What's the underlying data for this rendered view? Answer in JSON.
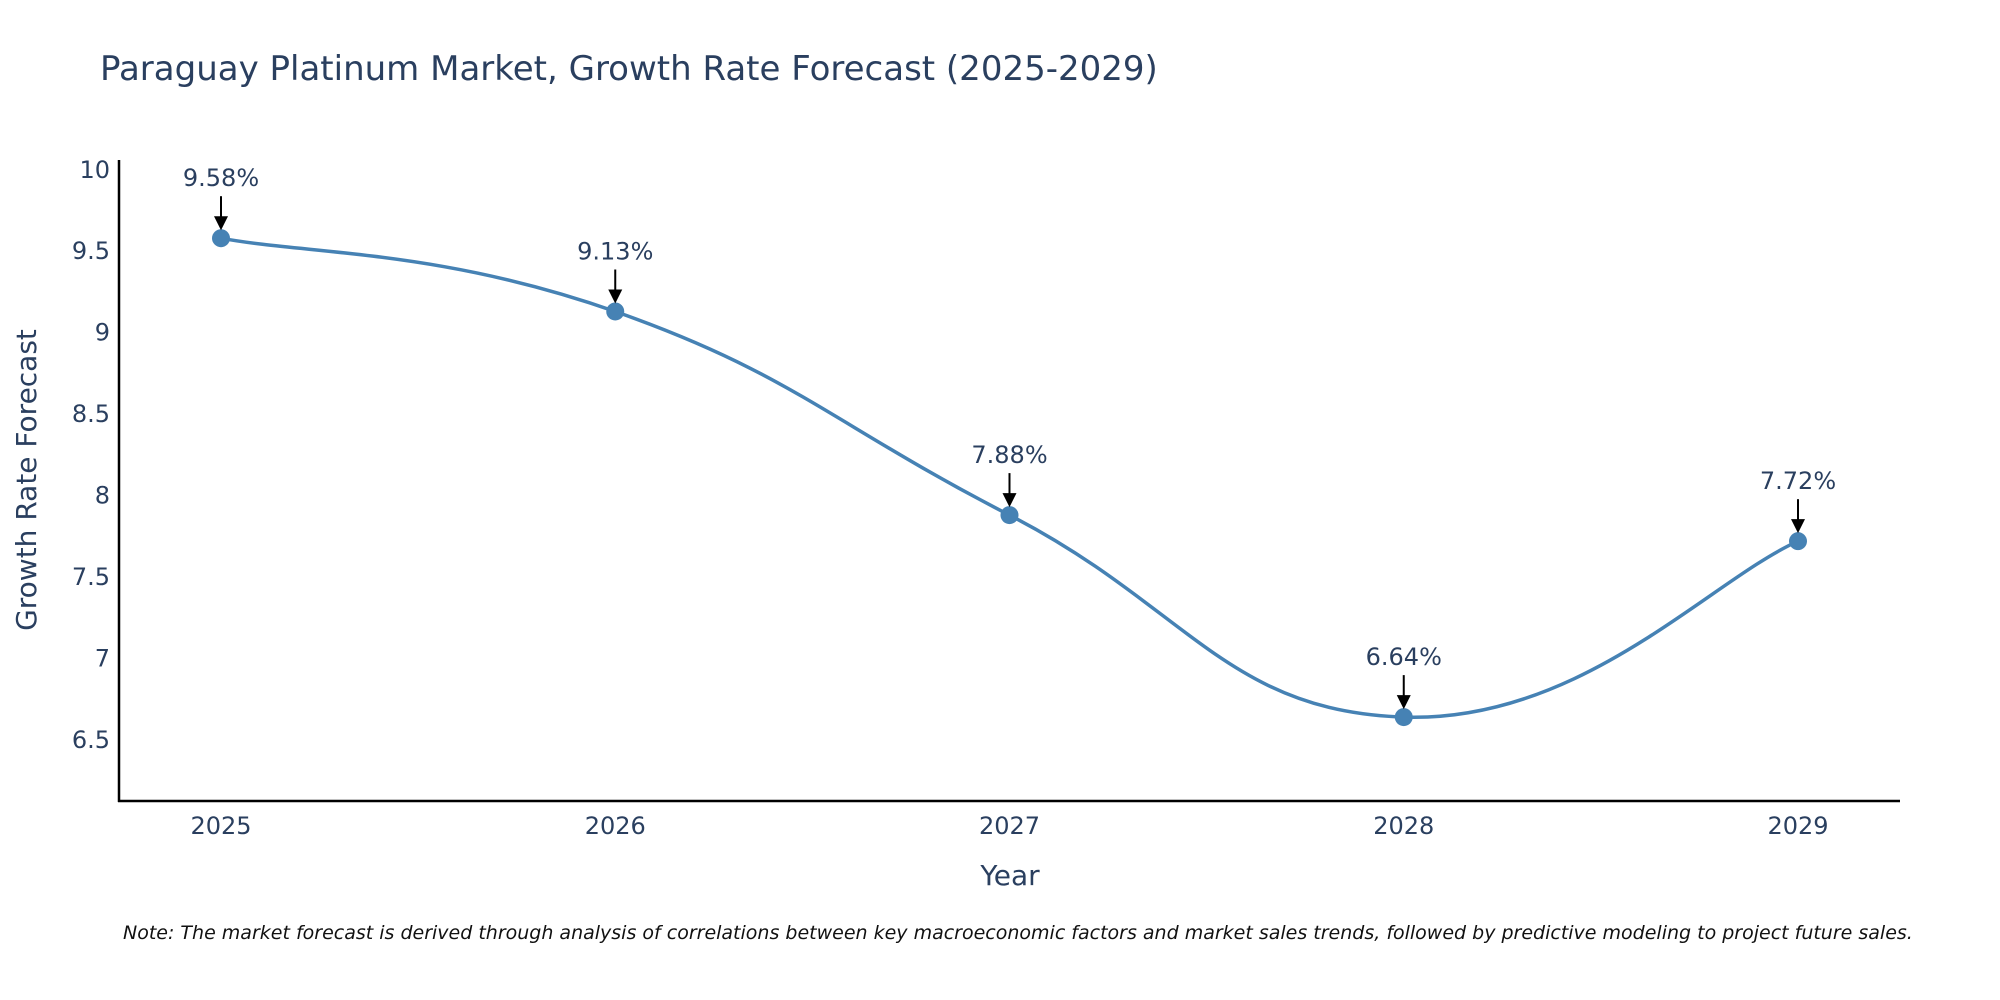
{
  "chart_data": {
    "type": "line",
    "title": "Paraguay Platinum Market, Growth Rate Forecast (2025-2029)",
    "xlabel": "Year",
    "ylabel": "Growth Rate Forecast",
    "categories": [
      "2025",
      "2026",
      "2027",
      "2028",
      "2029"
    ],
    "series": [
      {
        "name": "Growth Rate Forecast",
        "values": [
          9.58,
          9.13,
          7.88,
          6.64,
          7.72
        ],
        "labels": [
          "9.58%",
          "9.13%",
          "7.88%",
          "6.64%",
          "7.72%"
        ],
        "color": "#4682b4"
      }
    ],
    "yticks": [
      6.5,
      7,
      7.5,
      8,
      8.5,
      9,
      9.5,
      10
    ],
    "ytick_labels": [
      "6.5",
      "7",
      "7.5",
      "8",
      "8.5",
      "9",
      "9.5",
      "10"
    ],
    "ylim": [
      6.125,
      10.06
    ],
    "grid": false,
    "line_shape": "spline",
    "note": "Note: The market forecast is derived through analysis of correlations between key macroeconomic factors and market sales trends, followed by predictive modeling to project future sales."
  },
  "colors": {
    "line": "#4682b4",
    "text": "#2a3f5f",
    "axis": "#000000"
  }
}
